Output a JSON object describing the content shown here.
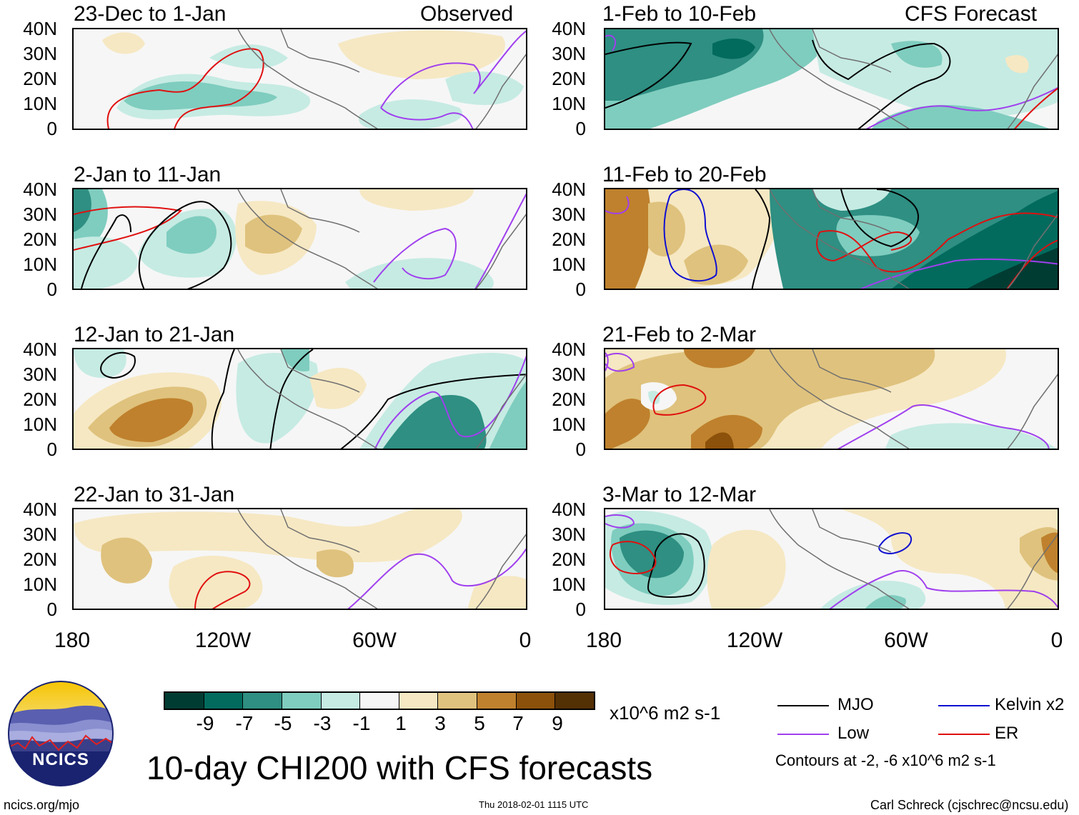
{
  "header": {
    "left_label": "Observed",
    "right_label": "CFS Forecast"
  },
  "panels": [
    {
      "title": "23-Dec to 1-Jan"
    },
    {
      "title": "2-Jan to 11-Jan"
    },
    {
      "title": "12-Jan to 21-Jan"
    },
    {
      "title": "22-Jan to 31-Jan"
    },
    {
      "title": "1-Feb to 10-Feb"
    },
    {
      "title": "11-Feb to 20-Feb"
    },
    {
      "title": "21-Feb to 2-Mar"
    },
    {
      "title": "3-Mar to 12-Mar"
    }
  ],
  "y_ticks": [
    "40N",
    "30N",
    "20N",
    "10N",
    "0"
  ],
  "x_ticks": [
    "180",
    "120W",
    "60W",
    "0"
  ],
  "colorbar": {
    "unit": "x10^6 m2 s-1",
    "labels": [
      "-9",
      "-7",
      "-5",
      "-3",
      "-1",
      "1",
      "3",
      "5",
      "7",
      "9"
    ],
    "colors": [
      "#013c33",
      "#026b5e",
      "#2e8f82",
      "#7fcdbf",
      "#c6ebe3",
      "#f6f6f6",
      "#f6e8c3",
      "#dfc27d",
      "#bf812d",
      "#8c510a",
      "#543005"
    ]
  },
  "legend": {
    "items": [
      {
        "label": "MJO",
        "color": "#000000"
      },
      {
        "label": "Kelvin x2",
        "color": "#1010d0"
      },
      {
        "label": "Low",
        "color": "#a040ee"
      },
      {
        "label": "ER",
        "color": "#e01010"
      }
    ],
    "note": "Contours at -2, -6 x10^6 m2 s-1"
  },
  "main_title": "10-day CHI200 with CFS forecasts",
  "logo_text": "NCICS",
  "footer": {
    "left": "ncics.org/mjo",
    "center": "Thu 2018-02-01 1115 UTC",
    "right": "Carl Schreck (cjschrec@ncsu.edu)"
  }
}
